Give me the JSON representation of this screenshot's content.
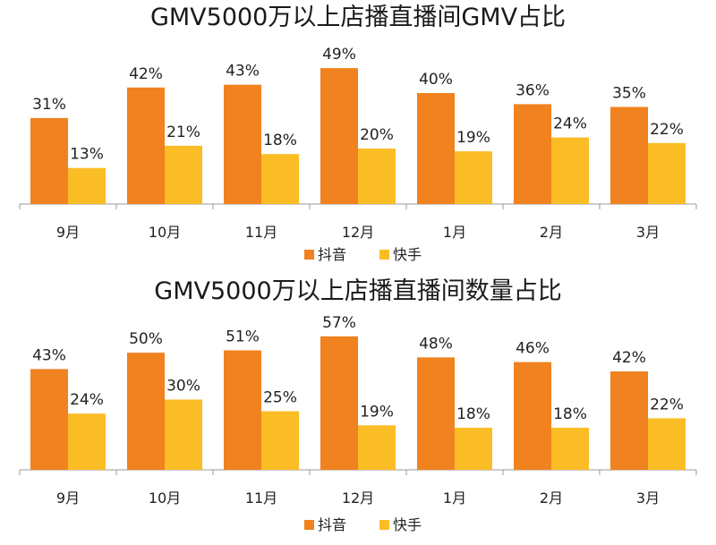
{
  "colors": {
    "douyin": "#F0821F",
    "kuaishou": "#FBBD26",
    "axis": "#9a9a9a"
  },
  "chart_data": [
    {
      "type": "bar",
      "title": "GMV5000万以上店播直播间GMV占比",
      "categories": [
        "9月",
        "10月",
        "11月",
        "12月",
        "1月",
        "2月",
        "3月"
      ],
      "series": [
        {
          "name": "抖音",
          "values": [
            31,
            42,
            43,
            49,
            40,
            36,
            35
          ],
          "labels": [
            "31%",
            "42%",
            "43%",
            "49%",
            "40%",
            "36%",
            "35%"
          ]
        },
        {
          "name": "快手",
          "values": [
            13,
            21,
            18,
            20,
            19,
            24,
            22
          ],
          "labels": [
            "13%",
            "21%",
            "18%",
            "20%",
            "19%",
            "24%",
            "22%"
          ]
        }
      ],
      "unit": "%",
      "ylim": [
        0,
        60
      ],
      "grid": false,
      "legend": "bottom"
    },
    {
      "type": "bar",
      "title": "GMV5000万以上店播直播间数量占比",
      "categories": [
        "9月",
        "10月",
        "11月",
        "12月",
        "1月",
        "2月",
        "3月"
      ],
      "series": [
        {
          "name": "抖音",
          "values": [
            43,
            50,
            51,
            57,
            48,
            46,
            42
          ],
          "labels": [
            "43%",
            "50%",
            "51%",
            "57%",
            "48%",
            "46%",
            "42%"
          ]
        },
        {
          "name": "快手",
          "values": [
            24,
            30,
            25,
            19,
            18,
            18,
            22
          ],
          "labels": [
            "24%",
            "30%",
            "25%",
            "19%",
            "18%",
            "18%",
            "22%"
          ]
        }
      ],
      "unit": "%",
      "ylim": [
        0,
        68
      ],
      "grid": false,
      "legend": "bottom"
    }
  ]
}
